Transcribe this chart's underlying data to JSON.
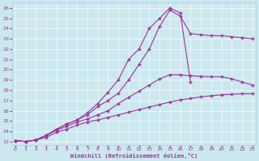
{
  "xlabel": "Windchill (Refroidissement éolien,°C)",
  "bg_color": "#cce8ef",
  "line_color": "#993399",
  "xlim": [
    -0.3,
    23.3
  ],
  "ylim": [
    12.7,
    26.5
  ],
  "xticks": [
    0,
    1,
    2,
    3,
    4,
    5,
    6,
    7,
    8,
    9,
    10,
    11,
    12,
    13,
    14,
    15,
    16,
    17,
    18,
    19,
    20,
    21,
    22,
    23
  ],
  "yticks": [
    13,
    14,
    15,
    16,
    17,
    18,
    19,
    20,
    21,
    22,
    23,
    24,
    25,
    26
  ],
  "line1": {
    "x": [
      0,
      1,
      2,
      3,
      4,
      5,
      6,
      7,
      8,
      9,
      10,
      11,
      12,
      13,
      14,
      15,
      16,
      17,
      18,
      19,
      20,
      21,
      22,
      23
    ],
    "y": [
      13.1,
      13.0,
      13.15,
      13.4,
      13.9,
      14.2,
      14.6,
      14.9,
      15.1,
      15.35,
      15.6,
      15.85,
      16.1,
      16.35,
      16.6,
      16.85,
      17.05,
      17.2,
      17.35,
      17.45,
      17.55,
      17.6,
      17.65,
      17.65
    ]
  },
  "line2": {
    "x": [
      0,
      1,
      2,
      3,
      4,
      5,
      6,
      7,
      8,
      9,
      10,
      11,
      12,
      13,
      14,
      15,
      16,
      17,
      18,
      19,
      20,
      21,
      22,
      23
    ],
    "y": [
      13.1,
      13.0,
      13.15,
      13.6,
      14.1,
      14.5,
      14.9,
      15.2,
      15.6,
      16.0,
      16.7,
      17.3,
      17.9,
      18.5,
      19.1,
      19.5,
      19.5,
      19.4,
      19.35,
      19.3,
      19.3,
      19.1,
      18.8,
      18.5
    ]
  },
  "line3": {
    "x": [
      0,
      1,
      2,
      3,
      4,
      5,
      6,
      7,
      8,
      9,
      10,
      11,
      12,
      13,
      14,
      15,
      16,
      17,
      18,
      19,
      20,
      21,
      22,
      23
    ],
    "y": [
      13.1,
      13.0,
      13.15,
      13.6,
      14.2,
      14.7,
      15.1,
      15.6,
      16.4,
      17.0,
      17.7,
      19.0,
      20.5,
      22.0,
      24.2,
      25.8,
      25.2,
      23.5,
      23.4,
      23.3,
      23.3,
      23.2,
      23.1,
      23.0
    ]
  },
  "line4": {
    "x": [
      0,
      1,
      2,
      3,
      4,
      5,
      6,
      7,
      8,
      9,
      10,
      11,
      12,
      13,
      14,
      15,
      16,
      17
    ],
    "y": [
      13.1,
      13.0,
      13.15,
      13.6,
      14.2,
      14.7,
      15.1,
      15.8,
      16.7,
      17.8,
      19.0,
      21.0,
      22.0,
      24.0,
      25.0,
      26.0,
      25.5,
      18.8
    ]
  }
}
